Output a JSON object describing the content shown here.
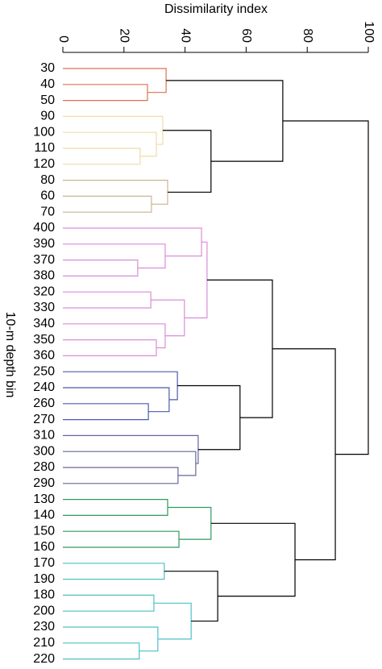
{
  "chart_data": {
    "type": "dendrogram",
    "title": "Dissimilarity index",
    "ylabel": "10-m depth bin",
    "xlim": [
      0,
      100
    ],
    "xticks": [
      0,
      20,
      40,
      60,
      80,
      100
    ],
    "tree": {
      "height": 100,
      "color": "#000000",
      "children": [
        {
          "height": 72,
          "color": "#000000",
          "children": [
            {
              "height": 33.8,
              "color": "#e0704f",
              "children": [
                {
                  "label": "30"
                },
                {
                  "height": 27.7,
                  "color": "#e0704f",
                  "children": [
                    {
                      "label": "40"
                    },
                    {
                      "label": "50"
                    }
                  ]
                }
              ]
            },
            {
              "height": 48.5,
              "color": "#000000",
              "children": [
                {
                  "height": 32.7,
                  "color": "#f2dba8",
                  "children": [
                    {
                      "label": "90"
                    },
                    {
                      "height": 30.6,
                      "color": "#f2dba8",
                      "children": [
                        {
                          "label": "100"
                        },
                        {
                          "height": 25.3,
                          "color": "#f2dba8",
                          "children": [
                            {
                              "label": "110"
                            },
                            {
                              "label": "120"
                            }
                          ]
                        }
                      ]
                    }
                  ]
                },
                {
                  "height": 34.3,
                  "color": "#cbb48c",
                  "children": [
                    {
                      "label": "80"
                    },
                    {
                      "height": 29,
                      "color": "#cbb48c",
                      "children": [
                        {
                          "label": "60"
                        },
                        {
                          "label": "70"
                        }
                      ]
                    }
                  ]
                }
              ]
            }
          ]
        },
        {
          "height": 89.2,
          "color": "#000000",
          "children": [
            {
              "height": 68.6,
              "color": "#000000",
              "children": [
                {
                  "height": 47.2,
                  "color": "#d98ed6",
                  "children": [
                    {
                      "height": 45.4,
                      "color": "#d98ed6",
                      "children": [
                        {
                          "label": "400"
                        },
                        {
                          "height": 33.5,
                          "color": "#d98ed6",
                          "children": [
                            {
                              "label": "390"
                            },
                            {
                              "height": 24.5,
                              "color": "#d98ed6",
                              "children": [
                                {
                                  "label": "370"
                                },
                                {
                                  "label": "380"
                                }
                              ]
                            }
                          ]
                        }
                      ]
                    },
                    {
                      "height": 39.8,
                      "color": "#d98ed6",
                      "children": [
                        {
                          "height": 28.8,
                          "color": "#d98ed6",
                          "children": [
                            {
                              "label": "320"
                            },
                            {
                              "label": "330"
                            }
                          ]
                        },
                        {
                          "height": 33.5,
                          "color": "#d98ed6",
                          "children": [
                            {
                              "label": "340"
                            },
                            {
                              "height": 30.6,
                              "color": "#d98ed6",
                              "children": [
                                {
                                  "label": "350"
                                },
                                {
                                  "label": "360"
                                }
                              ]
                            }
                          ]
                        }
                      ]
                    }
                  ]
                },
                {
                  "height": 58,
                  "color": "#000000",
                  "children": [
                    {
                      "height": 37.5,
                      "color": "#4b5bab",
                      "children": [
                        {
                          "label": "250"
                        },
                        {
                          "height": 34.8,
                          "color": "#4b5bab",
                          "children": [
                            {
                              "label": "240"
                            },
                            {
                              "height": 28,
                              "color": "#4b5bab",
                              "children": [
                                {
                                  "label": "260"
                                },
                                {
                                  "label": "270"
                                }
                              ]
                            }
                          ]
                        }
                      ]
                    },
                    {
                      "height": 44.3,
                      "color": "#64659f",
                      "children": [
                        {
                          "label": "310"
                        },
                        {
                          "height": 43.5,
                          "color": "#64659f",
                          "children": [
                            {
                              "label": "300"
                            },
                            {
                              "height": 37.7,
                              "color": "#64659f",
                              "children": [
                                {
                                  "label": "280"
                                },
                                {
                                  "label": "290"
                                }
                              ]
                            }
                          ]
                        }
                      ]
                    }
                  ]
                }
              ]
            },
            {
              "height": 76,
              "color": "#000000",
              "children": [
                {
                  "height": 48.5,
                  "color": "#2e9a60",
                  "children": [
                    {
                      "height": 34.3,
                      "color": "#2e9a60",
                      "children": [
                        {
                          "label": "130"
                        },
                        {
                          "label": "140"
                        }
                      ]
                    },
                    {
                      "height": 38,
                      "color": "#2e9a60",
                      "children": [
                        {
                          "label": "150"
                        },
                        {
                          "label": "160"
                        }
                      ]
                    }
                  ]
                },
                {
                  "height": 50.7,
                  "color": "#000000",
                  "children": [
                    {
                      "height": 33.2,
                      "color": "#4dc0c6",
                      "children": [
                        {
                          "label": "170"
                        },
                        {
                          "label": "190"
                        }
                      ]
                    },
                    {
                      "height": 42,
                      "color": "#4dc0c6",
                      "children": [
                        {
                          "height": 29.8,
                          "color": "#4dc0c6",
                          "children": [
                            {
                              "label": "180"
                            },
                            {
                              "label": "200"
                            }
                          ]
                        },
                        {
                          "height": 31.1,
                          "color": "#4dc0c6",
                          "children": [
                            {
                              "label": "230"
                            },
                            {
                              "height": 25,
                              "color": "#4dc0c6",
                              "children": [
                                {
                                  "label": "210"
                                },
                                {
                                  "label": "220"
                                }
                              ]
                            }
                          ]
                        }
                      ]
                    }
                  ]
                }
              ]
            }
          ]
        }
      ]
    }
  }
}
